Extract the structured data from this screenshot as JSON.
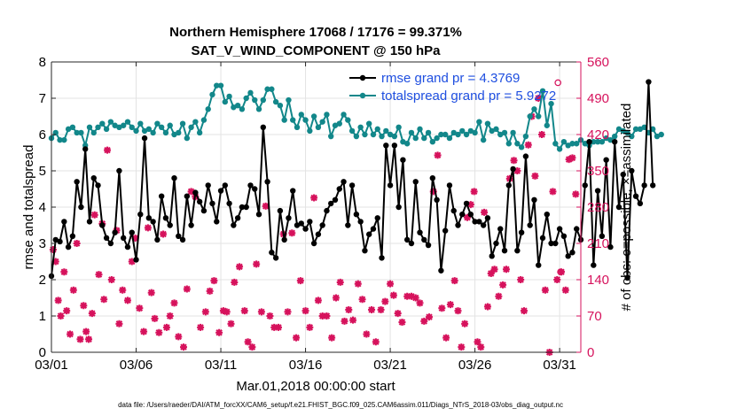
{
  "chart_data": {
    "type": "line",
    "title_line1": "Northern Hemisphere 17068 / 17176 = 99.371%",
    "title_line2": "SAT_V_WIND_COMPONENT @ 150 hPa",
    "xlabel": "Mar.01,2018 00:00:00 start",
    "ylabel_left": "rmse and totalspread",
    "ylabel_right": "# of obs: o=possible; ×=assimilated",
    "footer": "data file: /Users/raeder/DAI/ATM_forcXX/CAM6_setup/f.e21.FHIST_BGC.f09_025.CAM6assim.011/Diags_NTrS_2018-03/obs_diag_output.nc",
    "xlim": [
      1,
      32.25
    ],
    "ylim_left": [
      0,
      8
    ],
    "ylim_right": [
      0,
      560
    ],
    "x_ticks": [
      1,
      6,
      11,
      16,
      21,
      26,
      31
    ],
    "x_tick_labels": [
      "03/01",
      "03/06",
      "03/11",
      "03/16",
      "03/21",
      "03/26",
      "03/31"
    ],
    "y_ticks_left": [
      0,
      1,
      2,
      3,
      4,
      5,
      6,
      7,
      8
    ],
    "y_tick_labels_left": [
      "0",
      "1",
      "2",
      "3",
      "4",
      "5",
      "6",
      "7",
      "8"
    ],
    "y_ticks_right": [
      0,
      70,
      140,
      210,
      280,
      350,
      420,
      490,
      560
    ],
    "y_tick_labels_right": [
      "0",
      "70",
      "140",
      "210",
      "280",
      "350",
      "420",
      "490",
      "560"
    ],
    "colors": {
      "rmse": "#000000",
      "spread": "#12878a",
      "obs": "#d6125c",
      "legend_text": "#1f4fe0"
    },
    "series": [
      {
        "name": "rmse",
        "legend": "rmse grand pr = 4.3769",
        "axis": "left",
        "x_start": 1,
        "x_step": 0.25,
        "values": [
          2.1,
          3.1,
          3.05,
          3.6,
          2.9,
          3.2,
          4.7,
          4.0,
          5.6,
          3.6,
          4.8,
          4.6,
          3.5,
          3.15,
          3.0,
          3.3,
          5.0,
          3.15,
          2.9,
          3.3,
          2.55,
          3.8,
          5.9,
          3.7,
          3.6,
          3.1,
          4.3,
          3.7,
          3.5,
          4.8,
          3.2,
          3.1,
          4.3,
          3.5,
          4.4,
          4.15,
          3.9,
          4.6,
          4.1,
          3.6,
          4.45,
          4.6,
          4.1,
          3.5,
          3.7,
          4.0,
          4.0,
          4.6,
          4.5,
          3.8,
          6.2,
          4.7,
          2.75,
          2.6,
          3.9,
          3.1,
          3.7,
          4.45,
          3.5,
          3.55,
          3.4,
          3.6,
          3.0,
          3.25,
          3.5,
          3.9,
          4.1,
          4.2,
          4.5,
          4.7,
          3.5,
          4.6,
          3.8,
          3.6,
          2.8,
          3.25,
          3.4,
          3.7,
          2.6,
          5.7,
          4.6,
          5.7,
          4.0,
          5.3,
          3.1,
          3.0,
          4.7,
          3.3,
          3.1,
          2.95,
          4.8,
          4.2,
          2.25,
          3.35,
          4.6,
          3.9,
          3.5,
          3.8,
          4.1,
          3.8,
          3.6,
          3.6,
          3.5,
          3.7,
          2.65,
          3.0,
          3.4,
          2.8,
          4.6,
          5.05,
          2.8,
          3.3,
          5.4,
          3.5,
          4.2,
          2.4,
          3.15,
          3.8,
          3.0,
          3.0,
          3.4,
          3.2,
          2.65,
          2.75,
          3.4,
          3.1,
          4.6,
          5.8,
          2.4,
          4.45,
          3.2,
          5.3,
          2.9,
          5.8,
          4.0,
          4.9,
          2.05,
          5.0,
          4.3,
          4.1,
          4.6,
          7.45,
          4.6
        ]
      },
      {
        "name": "totalspread",
        "legend": "totalspread grand pr = 5.9272",
        "axis": "left",
        "x_start": 1,
        "x_step": 0.25,
        "values": [
          5.9,
          6.05,
          5.85,
          5.85,
          6.15,
          6.2,
          6.05,
          6.05,
          5.7,
          6.2,
          6.05,
          6.2,
          6.3,
          6.15,
          6.35,
          6.25,
          6.2,
          6.25,
          6.35,
          6.2,
          6.1,
          6.3,
          6.1,
          6.15,
          6.05,
          6.3,
          6.2,
          6.05,
          6.25,
          6.0,
          6.05,
          6.3,
          5.9,
          6.2,
          6.35,
          6.05,
          6.4,
          6.7,
          7.1,
          7.35,
          7.35,
          6.9,
          7.05,
          6.75,
          6.8,
          6.7,
          7.0,
          7.15,
          6.95,
          6.7,
          6.95,
          7.25,
          7.25,
          6.9,
          6.8,
          6.4,
          6.95,
          6.4,
          6.2,
          6.55,
          6.4,
          6.1,
          6.5,
          6.2,
          6.35,
          6.55,
          5.95,
          6.25,
          6.3,
          6.55,
          6.4,
          6.1,
          5.95,
          6.2,
          6.0,
          6.3,
          6.0,
          6.15,
          5.95,
          6.1,
          6.0,
          5.95,
          6.2,
          5.8,
          5.75,
          6.05,
          5.9,
          6.15,
          5.9,
          6.05,
          5.8,
          5.9,
          6.0,
          6.0,
          5.9,
          6.05,
          6.0,
          6.1,
          6.0,
          6.1,
          6.05,
          6.35,
          5.85,
          6.3,
          6.1,
          6.15,
          6.0,
          6.05,
          5.75,
          6.05,
          5.75,
          5.65,
          5.95,
          6.5,
          6.7,
          6.5,
          7.2,
          6.25,
          6.85,
          5.75,
          5.6,
          5.8,
          5.7,
          5.75,
          5.75,
          5.85,
          5.75,
          5.7,
          5.8,
          5.8,
          5.8,
          5.9,
          5.85,
          5.95,
          6.15,
          6.1,
          6.05,
          5.95,
          6.15,
          6.15,
          6.2,
          6.05,
          6.15,
          5.95,
          6.0
        ]
      }
    ],
    "obs_assimilated": [
      [
        1.1,
        198
      ],
      [
        1.25,
        175
      ],
      [
        1.4,
        100
      ],
      [
        1.55,
        70
      ],
      [
        1.75,
        155
      ],
      [
        1.9,
        80
      ],
      [
        2.1,
        35
      ],
      [
        2.3,
        120
      ],
      [
        2.5,
        210
      ],
      [
        2.7,
        25
      ],
      [
        2.9,
        90
      ],
      [
        3.05,
        40
      ],
      [
        3.2,
        25
      ],
      [
        3.4,
        75
      ],
      [
        3.55,
        265
      ],
      [
        3.8,
        150
      ],
      [
        4.0,
        248
      ],
      [
        4.1,
        102
      ],
      [
        4.3,
        390
      ],
      [
        4.55,
        140
      ],
      [
        4.85,
        235
      ],
      [
        5.0,
        55
      ],
      [
        5.2,
        120
      ],
      [
        5.5,
        100
      ],
      [
        5.75,
        175
      ],
      [
        5.95,
        220
      ],
      [
        6.2,
        85
      ],
      [
        6.45,
        40
      ],
      [
        6.7,
        240
      ],
      [
        6.9,
        115
      ],
      [
        7.1,
        65
      ],
      [
        7.35,
        38
      ],
      [
        7.6,
        228
      ],
      [
        7.8,
        48
      ],
      [
        8.0,
        70
      ],
      [
        8.25,
        95
      ],
      [
        8.5,
        30
      ],
      [
        8.8,
        10
      ],
      [
        9.0,
        122
      ],
      [
        9.25,
        310
      ],
      [
        9.5,
        300
      ],
      [
        9.8,
        48
      ],
      [
        10.1,
        78
      ],
      [
        10.35,
        118
      ],
      [
        10.6,
        138
      ],
      [
        10.9,
        38
      ],
      [
        11.15,
        80
      ],
      [
        11.35,
        78
      ],
      [
        11.6,
        55
      ],
      [
        11.8,
        135
      ],
      [
        12.1,
        165
      ],
      [
        12.4,
        80
      ],
      [
        12.6,
        20
      ],
      [
        12.85,
        10
      ],
      [
        13.1,
        170
      ],
      [
        13.4,
        78
      ],
      [
        13.65,
        282
      ],
      [
        13.9,
        70
      ],
      [
        14.15,
        48
      ],
      [
        14.4,
        48
      ],
      [
        14.7,
        228
      ],
      [
        14.95,
        78
      ],
      [
        15.2,
        230
      ],
      [
        15.45,
        28
      ],
      [
        15.7,
        138
      ],
      [
        16.0,
        80
      ],
      [
        16.25,
        48
      ],
      [
        16.5,
        298
      ],
      [
        16.75,
        100
      ],
      [
        17.0,
        70
      ],
      [
        17.25,
        70
      ],
      [
        17.55,
        28
      ],
      [
        17.8,
        105
      ],
      [
        18.05,
        135
      ],
      [
        18.3,
        60
      ],
      [
        18.55,
        82
      ],
      [
        18.8,
        62
      ],
      [
        19.1,
        132
      ],
      [
        19.35,
        102
      ],
      [
        19.6,
        35
      ],
      [
        19.9,
        82
      ],
      [
        20.15,
        20
      ],
      [
        20.45,
        82
      ],
      [
        20.7,
        98
      ],
      [
        21.0,
        132
      ],
      [
        21.2,
        110
      ],
      [
        21.45,
        75
      ],
      [
        21.7,
        58
      ],
      [
        22.0,
        108
      ],
      [
        22.25,
        108
      ],
      [
        22.5,
        105
      ],
      [
        22.75,
        95
      ],
      [
        23.0,
        60
      ],
      [
        23.3,
        68
      ],
      [
        23.55,
        310
      ],
      [
        23.8,
        380
      ],
      [
        24.05,
        85
      ],
      [
        24.3,
        28
      ],
      [
        24.55,
        92
      ],
      [
        24.8,
        138
      ],
      [
        25.0,
        80
      ],
      [
        25.2,
        10
      ],
      [
        25.4,
        55
      ],
      [
        25.55,
        260
      ],
      [
        25.75,
        285
      ],
      [
        25.95,
        310
      ],
      [
        26.15,
        20
      ],
      [
        26.35,
        10
      ],
      [
        26.55,
        270
      ],
      [
        26.75,
        88
      ],
      [
        26.95,
        152
      ],
      [
        27.15,
        160
      ],
      [
        27.4,
        108
      ],
      [
        27.65,
        130
      ],
      [
        27.85,
        160
      ],
      [
        28.05,
        335
      ],
      [
        28.3,
        370
      ],
      [
        28.5,
        350
      ],
      [
        28.7,
        140
      ],
      [
        28.9,
        80
      ],
      [
        29.15,
        400
      ],
      [
        29.35,
        455
      ],
      [
        29.55,
        340
      ],
      [
        29.75,
        490
      ],
      [
        29.95,
        420
      ],
      [
        30.15,
        120
      ],
      [
        30.4,
        0
      ],
      [
        30.6,
        310
      ],
      [
        30.85,
        140
      ],
      [
        31.1,
        155
      ],
      [
        31.35,
        120
      ],
      [
        31.55,
        372
      ],
      [
        31.75,
        375
      ],
      [
        31.95,
        305
      ]
    ],
    "obs_possible": [
      [
        30.9,
        520
      ],
      [
        31.05,
        155
      ]
    ],
    "hidden_note": ""
  }
}
